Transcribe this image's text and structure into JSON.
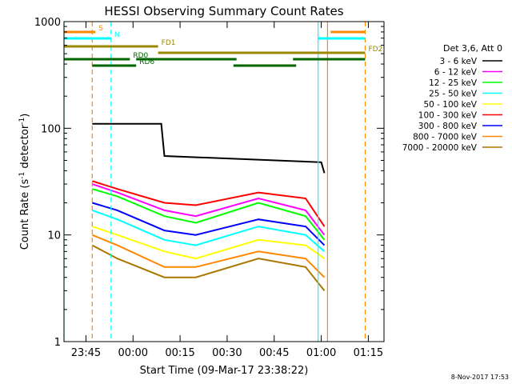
{
  "chart_data": {
    "type": "line",
    "title": "HESSI Observing Summary Count Rates",
    "xlabel": "Start Time (09-Mar-17 23:38:22)",
    "ylabel": "Count Rate (s⁻¹ detector⁻¹)",
    "ylabel_parts": {
      "pre": "Count Rate (s",
      "sup1": "-1",
      "mid": " detector",
      "sup2": "-1",
      "post": ")"
    },
    "y_scale": "log",
    "ylim": [
      1,
      1000
    ],
    "xlim": [
      "23:38",
      "01:20"
    ],
    "x_ticks": [
      "23:45",
      "00:00",
      "00:15",
      "00:30",
      "00:45",
      "01:00",
      "01:15"
    ],
    "y_ticks": [
      "1",
      "10",
      "100",
      "1000"
    ],
    "grid": false,
    "legend_header": "Det 3,6, Att 0",
    "legend_position": "right",
    "footer_date": "8-Nov-2017 17:53",
    "series": [
      {
        "name": "3 - 6 keV",
        "color": "#000000",
        "x": [
          "23:40",
          "23:46",
          "23:47",
          "00:09",
          "00:10",
          "01:00",
          "01:01",
          "01:02"
        ],
        "y": [
          null,
          null,
          110,
          110,
          55,
          48,
          38,
          null
        ]
      },
      {
        "name": "6 - 12 keV",
        "color": "#ff00ff",
        "x": [
          "23:47",
          "23:55",
          "00:10",
          "00:20",
          "00:40",
          "00:55",
          "01:01"
        ],
        "y": [
          30,
          25,
          17,
          15,
          22,
          17,
          10
        ]
      },
      {
        "name": "12 - 25 keV",
        "color": "#00ff00",
        "x": [
          "23:47",
          "23:55",
          "00:10",
          "00:20",
          "00:40",
          "00:55",
          "01:01"
        ],
        "y": [
          27,
          23,
          15,
          13,
          20,
          15,
          9
        ]
      },
      {
        "name": "25 - 50 keV",
        "color": "#00ffff",
        "x": [
          "23:47",
          "23:55",
          "00:10",
          "00:20",
          "00:40",
          "00:55",
          "01:01"
        ],
        "y": [
          17,
          14,
          9,
          8,
          12,
          10,
          7
        ]
      },
      {
        "name": "50 - 100 keV",
        "color": "#ffff00",
        "x": [
          "23:47",
          "23:55",
          "00:10",
          "00:20",
          "00:40",
          "00:55",
          "01:01"
        ],
        "y": [
          12,
          10,
          7,
          6,
          9,
          8,
          6
        ]
      },
      {
        "name": "100 - 300 keV",
        "color": "#ff0000",
        "x": [
          "23:47",
          "23:55",
          "00:10",
          "00:20",
          "00:40",
          "00:55",
          "01:01"
        ],
        "y": [
          32,
          27,
          20,
          19,
          25,
          22,
          12
        ]
      },
      {
        "name": "300 - 800 keV",
        "color": "#0000ff",
        "x": [
          "23:47",
          "23:55",
          "00:10",
          "00:20",
          "00:40",
          "00:55",
          "01:01"
        ],
        "y": [
          20,
          17,
          11,
          10,
          14,
          12,
          8
        ]
      },
      {
        "name": "800 - 7000 keV",
        "color": "#ff8800",
        "x": [
          "23:47",
          "23:55",
          "00:10",
          "00:20",
          "00:40",
          "00:55",
          "01:01"
        ],
        "y": [
          10,
          8,
          5,
          5,
          7,
          6,
          4
        ]
      },
      {
        "name": "7000 - 20000 keV",
        "color": "#aa7700",
        "x": [
          "23:47",
          "23:55",
          "00:10",
          "00:20",
          "00:40",
          "00:55",
          "01:01"
        ],
        "y": [
          8,
          6,
          4,
          4,
          6,
          5,
          3
        ]
      }
    ],
    "annotations": [
      {
        "label": "S",
        "color": "#ff8800",
        "segments": [
          [
            "23:38",
            "23:48"
          ],
          [
            "01:03",
            "01:14"
          ]
        ]
      },
      {
        "label": "N",
        "color": "#00ffff",
        "segments": [
          [
            "23:38",
            "23:53"
          ],
          [
            "00:59",
            "01:14"
          ]
        ]
      },
      {
        "label": "FD1",
        "color": "#998800",
        "segments": [
          [
            "23:38",
            "00:08"
          ]
        ]
      },
      {
        "label": "FD2",
        "color": "#998800",
        "segments": [
          [
            "00:08",
            "01:14"
          ]
        ]
      },
      {
        "label": "RD0",
        "color": "#006600",
        "segments": [
          [
            "23:38",
            "23:59"
          ],
          [
            "00:01",
            "00:33"
          ],
          [
            "00:51",
            "01:14"
          ]
        ]
      },
      {
        "label": "RD6",
        "color": "#006600",
        "segments": [
          [
            "23:47",
            "00:01"
          ],
          [
            "00:32",
            "00:52"
          ]
        ]
      }
    ],
    "vertical_markers": [
      {
        "x": "23:38",
        "color": "#00ffff",
        "style": "solid"
      },
      {
        "x": "23:47",
        "color": "#ff8800",
        "style": "dashed"
      },
      {
        "x": "23:53",
        "color": "#00ffff",
        "style": "dashed"
      },
      {
        "x": "00:59",
        "color": "#00ffff",
        "style": "solid"
      },
      {
        "x": "01:02",
        "color": "#ff8800",
        "style": "solid"
      },
      {
        "x": "01:14",
        "color": "#ff8800",
        "style": "dashed"
      }
    ]
  }
}
